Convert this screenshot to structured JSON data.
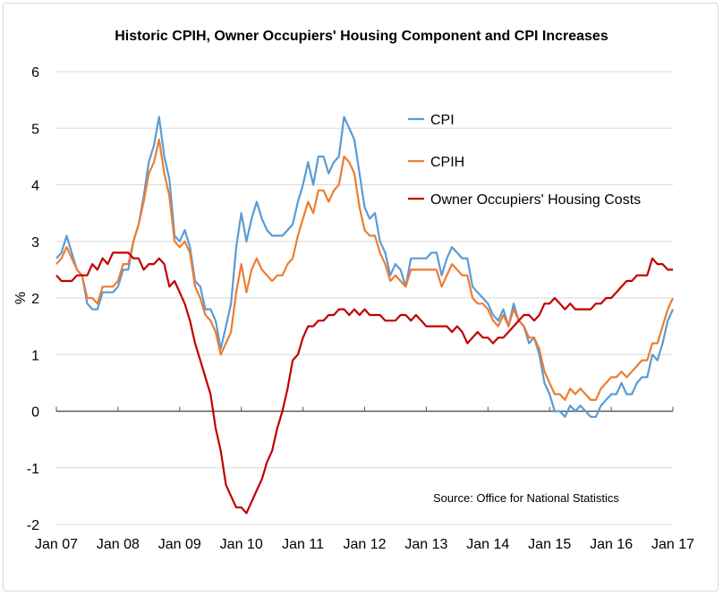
{
  "chart_data": {
    "type": "line",
    "title": "Historic CPIH, Owner Occupiers' Housing Component and CPI Increases",
    "xlabel": "",
    "ylabel": "%",
    "ylim": [
      -2,
      6
    ],
    "yticks": [
      "-2",
      "-1",
      "0",
      "1",
      "2",
      "3",
      "4",
      "5",
      "6"
    ],
    "x_start": "Jan 2007",
    "x_end": "Jan 2017",
    "frequency": "monthly",
    "xtick_labels": [
      "Jan 07",
      "Jan 08",
      "Jan 09",
      "Jan 10",
      "Jan 11",
      "Jan 12",
      "Jan 13",
      "Jan 14",
      "Jan 15",
      "Jan 16",
      "Jan 17"
    ],
    "grid": true,
    "legend_position": "top-right",
    "annotation": "Source: Office for National Statistics",
    "series": [
      {
        "name": "CPI",
        "color": "#5b9bd5",
        "values": [
          2.7,
          2.8,
          3.1,
          2.8,
          2.5,
          2.4,
          1.9,
          1.8,
          1.8,
          2.1,
          2.1,
          2.1,
          2.2,
          2.5,
          2.5,
          3.0,
          3.3,
          3.8,
          4.4,
          4.7,
          5.2,
          4.5,
          4.1,
          3.1,
          3.0,
          3.2,
          2.9,
          2.3,
          2.2,
          1.8,
          1.8,
          1.6,
          1.1,
          1.5,
          1.9,
          2.9,
          3.5,
          3.0,
          3.4,
          3.7,
          3.4,
          3.2,
          3.1,
          3.1,
          3.1,
          3.2,
          3.3,
          3.7,
          4.0,
          4.4,
          4.0,
          4.5,
          4.5,
          4.2,
          4.4,
          4.5,
          5.2,
          5.0,
          4.8,
          4.2,
          3.6,
          3.4,
          3.5,
          3.0,
          2.8,
          2.4,
          2.6,
          2.5,
          2.2,
          2.7,
          2.7,
          2.7,
          2.7,
          2.8,
          2.8,
          2.4,
          2.7,
          2.9,
          2.8,
          2.7,
          2.7,
          2.2,
          2.1,
          2.0,
          1.9,
          1.7,
          1.6,
          1.8,
          1.5,
          1.9,
          1.6,
          1.5,
          1.2,
          1.3,
          1.0,
          0.5,
          0.3,
          0.0,
          0.0,
          -0.1,
          0.1,
          0.0,
          0.1,
          0.0,
          -0.1,
          -0.1,
          0.1,
          0.2,
          0.3,
          0.3,
          0.5,
          0.3,
          0.3,
          0.5,
          0.6,
          0.6,
          1.0,
          0.9,
          1.2,
          1.6,
          1.8
        ]
      },
      {
        "name": "CPIH",
        "color": "#ed7d31",
        "values": [
          2.6,
          2.7,
          2.9,
          2.7,
          2.5,
          2.4,
          2.0,
          2.0,
          1.9,
          2.2,
          2.2,
          2.2,
          2.3,
          2.6,
          2.6,
          3.0,
          3.3,
          3.7,
          4.2,
          4.4,
          4.8,
          4.2,
          3.8,
          3.0,
          2.9,
          3.0,
          2.8,
          2.2,
          2.0,
          1.7,
          1.6,
          1.4,
          1.0,
          1.2,
          1.4,
          2.1,
          2.6,
          2.1,
          2.5,
          2.7,
          2.5,
          2.4,
          2.3,
          2.4,
          2.4,
          2.6,
          2.7,
          3.1,
          3.4,
          3.7,
          3.5,
          3.9,
          3.9,
          3.7,
          3.9,
          4.0,
          4.5,
          4.4,
          4.2,
          3.6,
          3.2,
          3.1,
          3.1,
          2.8,
          2.6,
          2.3,
          2.4,
          2.3,
          2.2,
          2.5,
          2.5,
          2.5,
          2.5,
          2.5,
          2.5,
          2.2,
          2.4,
          2.6,
          2.5,
          2.4,
          2.4,
          2.0,
          1.9,
          1.9,
          1.8,
          1.6,
          1.5,
          1.7,
          1.5,
          1.8,
          1.6,
          1.5,
          1.3,
          1.3,
          1.1,
          0.7,
          0.5,
          0.3,
          0.3,
          0.2,
          0.4,
          0.3,
          0.4,
          0.3,
          0.2,
          0.2,
          0.4,
          0.5,
          0.6,
          0.6,
          0.7,
          0.6,
          0.7,
          0.8,
          0.9,
          0.9,
          1.2,
          1.2,
          1.5,
          1.8,
          2.0
        ]
      },
      {
        "name": "Owner Occupiers' Housing Costs",
        "color": "#c00000",
        "values": [
          2.4,
          2.3,
          2.3,
          2.3,
          2.4,
          2.4,
          2.4,
          2.6,
          2.5,
          2.7,
          2.6,
          2.8,
          2.8,
          2.8,
          2.8,
          2.7,
          2.7,
          2.5,
          2.6,
          2.6,
          2.7,
          2.6,
          2.2,
          2.3,
          2.1,
          1.9,
          1.6,
          1.2,
          0.9,
          0.6,
          0.3,
          -0.3,
          -0.7,
          -1.3,
          -1.5,
          -1.7,
          -1.7,
          -1.8,
          -1.6,
          -1.4,
          -1.2,
          -0.9,
          -0.7,
          -0.3,
          0.0,
          0.4,
          0.9,
          1.0,
          1.3,
          1.5,
          1.5,
          1.6,
          1.6,
          1.7,
          1.7,
          1.8,
          1.8,
          1.7,
          1.8,
          1.7,
          1.8,
          1.7,
          1.7,
          1.7,
          1.6,
          1.6,
          1.6,
          1.7,
          1.7,
          1.6,
          1.7,
          1.6,
          1.5,
          1.5,
          1.5,
          1.5,
          1.5,
          1.4,
          1.5,
          1.4,
          1.2,
          1.3,
          1.4,
          1.3,
          1.3,
          1.2,
          1.3,
          1.3,
          1.4,
          1.5,
          1.6,
          1.7,
          1.7,
          1.6,
          1.7,
          1.9,
          1.9,
          2.0,
          1.9,
          1.8,
          1.9,
          1.8,
          1.8,
          1.8,
          1.8,
          1.9,
          1.9,
          2.0,
          2.0,
          2.1,
          2.2,
          2.3,
          2.3,
          2.4,
          2.4,
          2.4,
          2.7,
          2.6,
          2.6,
          2.5,
          2.5
        ]
      }
    ]
  }
}
